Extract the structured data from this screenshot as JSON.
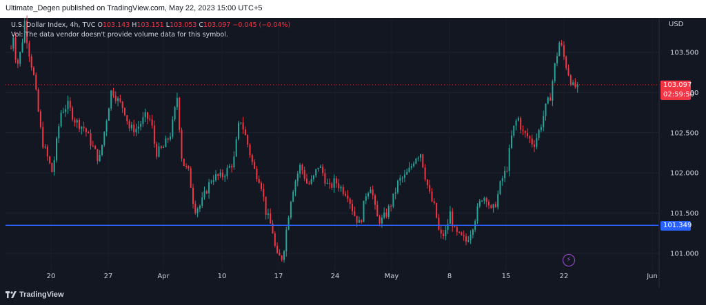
{
  "header": {
    "publisher_line": "Ultimate_Degen published on TradingView.com, May 22, 2023 15:00 UTC+5"
  },
  "legend": {
    "symbol": "U.S. Dollar Index, 4h, TVC",
    "o_label": "O",
    "o_value": "103.143",
    "h_label": "H",
    "h_value": "103.151",
    "l_label": "L",
    "l_value": "103.053",
    "c_label": "C",
    "c_value": "103.097",
    "change": "−0.045 (−0.04%)",
    "volume_note": "Vol: The data vendor doesn't provide volume data for this symbol."
  },
  "axis": {
    "currency": "USD"
  },
  "price_tag": {
    "price": "103.097",
    "countdown": "02:59:50"
  },
  "line_tag": {
    "price": "101.349"
  },
  "footer": {
    "brand": "TradingView"
  },
  "colors": {
    "up": "#26a69a",
    "down": "#f23645",
    "line": "#2962ff",
    "background": "#131722"
  },
  "chart_data": {
    "type": "candlestick",
    "y_ticks": [
      "103.500",
      "103.000",
      "102.500",
      "102.000",
      "101.500",
      "101.000"
    ],
    "x_ticks": [
      "20",
      "27",
      "Apr",
      "10",
      "17",
      "24",
      "May",
      "8",
      "15",
      "22",
      "Jun"
    ],
    "ylim": [
      100.85,
      103.75
    ],
    "horizontal_line": 101.349,
    "last_price": 103.097,
    "path": [
      [
        0,
        103.55
      ],
      [
        4,
        103.75
      ],
      [
        8,
        103.3
      ],
      [
        15,
        103.55
      ],
      [
        20,
        103.9
      ],
      [
        24,
        103.6
      ],
      [
        33,
        103.2
      ],
      [
        45,
        102.4
      ],
      [
        60,
        102.0
      ],
      [
        72,
        102.75
      ],
      [
        82,
        102.85
      ],
      [
        93,
        102.65
      ],
      [
        107,
        102.55
      ],
      [
        117,
        102.35
      ],
      [
        128,
        102.15
      ],
      [
        137,
        102.6
      ],
      [
        146,
        103.05
      ],
      [
        155,
        102.9
      ],
      [
        164,
        102.8
      ],
      [
        172,
        102.55
      ],
      [
        182,
        102.55
      ],
      [
        195,
        102.7
      ],
      [
        203,
        102.65
      ],
      [
        210,
        102.25
      ],
      [
        220,
        102.3
      ],
      [
        232,
        102.5
      ],
      [
        241,
        102.95
      ],
      [
        248,
        102.15
      ],
      [
        258,
        102.0
      ],
      [
        266,
        101.55
      ],
      [
        275,
        101.6
      ],
      [
        284,
        101.8
      ],
      [
        292,
        101.95
      ],
      [
        305,
        101.95
      ],
      [
        315,
        102.05
      ],
      [
        323,
        102.15
      ],
      [
        332,
        102.7
      ],
      [
        345,
        102.3
      ],
      [
        352,
        102.05
      ],
      [
        362,
        101.9
      ],
      [
        370,
        101.5
      ],
      [
        379,
        101.3
      ],
      [
        385,
        100.95
      ],
      [
        394,
        100.95
      ],
      [
        401,
        101.4
      ],
      [
        407,
        101.75
      ],
      [
        414,
        101.95
      ],
      [
        420,
        102.1
      ],
      [
        430,
        101.85
      ],
      [
        437,
        101.9
      ],
      [
        446,
        102.1
      ],
      [
        452,
        102.0
      ],
      [
        461,
        101.8
      ],
      [
        470,
        101.9
      ],
      [
        480,
        101.8
      ],
      [
        488,
        101.75
      ],
      [
        497,
        101.5
      ],
      [
        506,
        101.35
      ],
      [
        515,
        101.75
      ],
      [
        522,
        101.85
      ],
      [
        530,
        101.45
      ],
      [
        537,
        101.4
      ],
      [
        545,
        101.5
      ],
      [
        553,
        101.65
      ],
      [
        562,
        101.9
      ],
      [
        571,
        101.95
      ],
      [
        579,
        102.05
      ],
      [
        586,
        102.2
      ],
      [
        594,
        102.25
      ],
      [
        601,
        101.95
      ],
      [
        608,
        101.7
      ],
      [
        615,
        101.55
      ],
      [
        622,
        101.2
      ],
      [
        630,
        101.25
      ],
      [
        637,
        101.5
      ],
      [
        644,
        101.25
      ],
      [
        652,
        101.2
      ],
      [
        660,
        101.15
      ],
      [
        668,
        101.3
      ],
      [
        675,
        101.5
      ],
      [
        683,
        101.7
      ],
      [
        690,
        101.7
      ],
      [
        697,
        101.5
      ],
      [
        704,
        101.65
      ],
      [
        711,
        101.9
      ],
      [
        719,
        102.05
      ],
      [
        727,
        102.5
      ],
      [
        735,
        102.7
      ],
      [
        742,
        102.5
      ],
      [
        750,
        102.45
      ],
      [
        758,
        102.35
      ],
      [
        767,
        102.55
      ],
      [
        775,
        102.8
      ],
      [
        782,
        102.95
      ],
      [
        789,
        103.35
      ],
      [
        796,
        103.65
      ],
      [
        803,
        103.4
      ],
      [
        810,
        103.2
      ],
      [
        816,
        103.05
      ],
      [
        822,
        103.1
      ]
    ]
  }
}
